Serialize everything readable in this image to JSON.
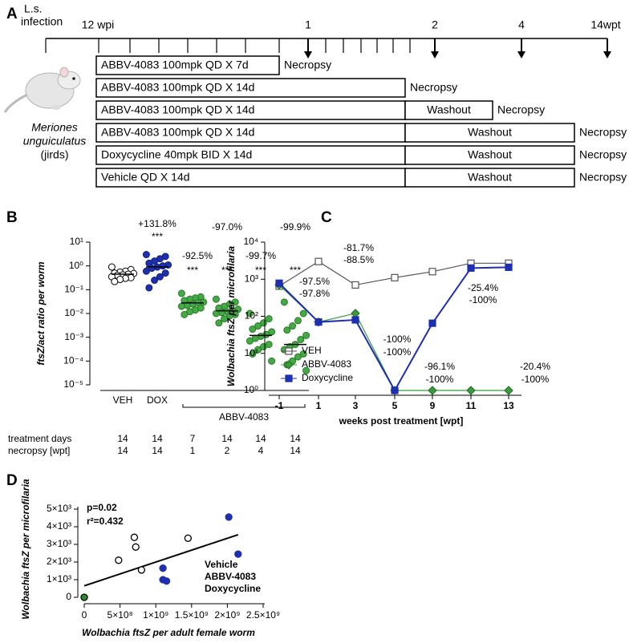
{
  "panel_a": {
    "label": "A",
    "infection_label": [
      "L.s.",
      "infection"
    ],
    "start_label": "12 wpi",
    "time_labels": [
      "1",
      "2",
      "4",
      "14wpt"
    ],
    "species": [
      "Meriones",
      "unguiculatus"
    ],
    "host": "(jirds)",
    "rows": [
      {
        "treatment": "ABBV-4083 100mpk QD X 7d",
        "endpoint": "Necropsy"
      },
      {
        "treatment": "ABBV-4083 100mpk QD X 14d",
        "endpoint": "Necropsy"
      },
      {
        "treatment": "ABBV-4083 100mpk QD X 14d",
        "washout": "Washout",
        "endpoint": "Necropsy"
      },
      {
        "treatment": "ABBV-4083 100mpk QD X 14d",
        "washout": "Washout",
        "endpoint": "Necropsy"
      },
      {
        "treatment": "Doxycycline 40mpk BID X 14d",
        "washout": "Washout",
        "endpoint": "Necropsy"
      },
      {
        "treatment": "Vehicle QD X 14d",
        "washout": "Washout",
        "endpoint": "Necropsy"
      }
    ]
  },
  "chart_data": [
    {
      "type": "dot-plot",
      "label": "B",
      "y_label": "ftsZ/act ratio per worm",
      "log_y": true,
      "ylim": [
        1e-05,
        10
      ],
      "yticks": [
        {
          "value": 10,
          "label": "10¹"
        },
        {
          "value": 1,
          "label": "10⁰"
        },
        {
          "value": 0.1,
          "label": "10⁻¹"
        },
        {
          "value": 0.01,
          "label": "10⁻²"
        },
        {
          "value": 0.001,
          "label": "10⁻³"
        },
        {
          "value": 0.0001,
          "label": "10⁻⁴"
        },
        {
          "value": 1e-05,
          "label": "10⁻⁵"
        }
      ],
      "categories": [
        "VEH",
        "DOX",
        null,
        null,
        null,
        null
      ],
      "group_label": "ABBV-4083",
      "colors": [
        "#ffffff",
        "#1e2fb0",
        "#44aa44",
        "#44aa44",
        "#44aa44",
        "#44aa44"
      ],
      "edge_colors": [
        "#000000",
        "#10207a",
        "#2a7a2a",
        "#2a7a2a",
        "#2a7a2a",
        "#2a7a2a"
      ],
      "values": [
        [
          0.9,
          0.7,
          0.6,
          0.55,
          0.5,
          0.48,
          0.45,
          0.42,
          0.4,
          0.35,
          0.32,
          0.3,
          0.27,
          0.22
        ],
        [
          3,
          2.5,
          2,
          1.6,
          1.3,
          1.1,
          1,
          0.9,
          0.8,
          0.6,
          0.5,
          0.35,
          0.25,
          0.12
        ],
        [
          0.07,
          0.05,
          0.045,
          0.04,
          0.035,
          0.03,
          0.028,
          0.025,
          0.022,
          0.02,
          0.017,
          0.014,
          0.012,
          0.009
        ],
        [
          0.04,
          0.03,
          0.025,
          0.02,
          0.017,
          0.015,
          0.013,
          0.012,
          0.011,
          0.01,
          0.009,
          0.008,
          0.006,
          0.004
        ],
        [
          0.01,
          0.006,
          0.004,
          0.003,
          0.0022,
          0.0017,
          0.0013,
          0.0011,
          0.0009,
          0.0007,
          0.0005,
          0.0004,
          0.0003,
          0.0002,
          0.0001
        ],
        [
          0.03,
          0.01,
          0.005,
          0.003,
          0.002,
          0.0012,
          0.0008,
          0.0005,
          0.0004,
          0.0003,
          0.0002,
          0.00015,
          0.0001,
          7e-05,
          4e-05
        ]
      ],
      "medians": [
        0.45,
        0.9,
        0.028,
        0.013,
        0.0012,
        0.0005
      ],
      "annotations": [
        null,
        "+131.8%",
        "-92.5%",
        "-97.0%",
        "-99.7%",
        "-99.9%"
      ],
      "significance": [
        null,
        "***",
        "***",
        "***",
        "***",
        "***"
      ],
      "table": [
        {
          "label": "treatment days",
          "values": [
            14,
            14,
            7,
            14,
            14,
            14
          ]
        },
        {
          "label": "necropsy [wpt]",
          "values": [
            14,
            14,
            1,
            2,
            4,
            14
          ]
        }
      ]
    },
    {
      "type": "line",
      "label": "C",
      "x_label": "weeks post treatment [wpt]",
      "y_label": "Wolbachia ftsZ per microfilaria",
      "log_y": true,
      "categories": [
        "-1",
        "1",
        "3",
        "5",
        "9",
        "11",
        "13"
      ],
      "ylim": [
        1,
        10000
      ],
      "yticks": [
        {
          "value": 1,
          "label": "10⁰"
        },
        {
          "value": 10,
          "label": "10¹"
        },
        {
          "value": 100,
          "label": "10²"
        },
        {
          "value": 1000,
          "label": "10³"
        },
        {
          "value": 10000,
          "label": "10⁴"
        }
      ],
      "series": [
        {
          "name": "VEH",
          "color": "#555555",
          "marker": "square-open",
          "values": [
            650,
            3000,
            700,
            1100,
            1600,
            2700,
            2700
          ]
        },
        {
          "name": "ABBV-4083",
          "color": "#3c9a3c",
          "marker": "diamond",
          "values": [
            700,
            70,
            120,
            1,
            1,
            1,
            1
          ],
          "annotations": [
            null,
            "-97.5%",
            "-81.7%",
            "-100%",
            "-100%",
            "-100%",
            "-100%"
          ]
        },
        {
          "name": "Doxycycline",
          "color": "#1e2fb0",
          "marker": "square",
          "values": [
            780,
            70,
            80,
            1,
            65,
            2000,
            2100
          ],
          "annotations": [
            null,
            "-97.8%",
            "-88.5%",
            "-100%",
            "-96.1%",
            "-25.4%",
            "-20.4%"
          ]
        }
      ]
    },
    {
      "type": "scatter",
      "label": "D",
      "x_label": "Wolbachia ftsZ per adult female worm",
      "y_label": "Wolbachia ftsZ per microfilaria",
      "xlim": [
        0,
        2500000000
      ],
      "xticks": [
        0,
        {
          "value": 500000000,
          "label": "5×10⁸"
        },
        {
          "value": 1000000000,
          "label": "1×10⁹"
        },
        {
          "value": 1500000000,
          "label": "1.5×10⁹"
        },
        {
          "value": 2000000000,
          "label": "2×10⁹"
        },
        {
          "value": 2500000000,
          "label": "2.5×10⁹"
        }
      ],
      "ylim": [
        0,
        5000
      ],
      "yticks": [
        0,
        {
          "value": 1000,
          "label": "1×10³"
        },
        {
          "value": 2000,
          "label": "2×10³"
        },
        {
          "value": 3000,
          "label": "3×10³"
        },
        {
          "value": 4000,
          "label": "4×10³"
        },
        {
          "value": 5000,
          "label": "5×10³"
        }
      ],
      "annotations": [
        "p=0.02",
        "r²=0.432"
      ],
      "series": [
        {
          "name": "Vehicle",
          "color": "#000000",
          "filled": false,
          "x": [
            480000000,
            700000000,
            720000000,
            800000000,
            1450000000
          ],
          "y": [
            2100,
            3400,
            2850,
            1550,
            3350
          ]
        },
        {
          "name": "ABBV-4083",
          "color": "#2e8b2e",
          "filled": true,
          "x": [
            0
          ],
          "y": [
            0
          ]
        },
        {
          "name": "Doxycycline",
          "color": "#1e2fb0",
          "filled": true,
          "x": [
            1100000000,
            1100000000,
            1150000000,
            2020000000,
            2150000000
          ],
          "y": [
            1650,
            1000,
            920,
            4550,
            2450
          ]
        }
      ],
      "fit": {
        "x": [
          0,
          2150000000
        ],
        "y": [
          650,
          3550
        ]
      }
    }
  ]
}
